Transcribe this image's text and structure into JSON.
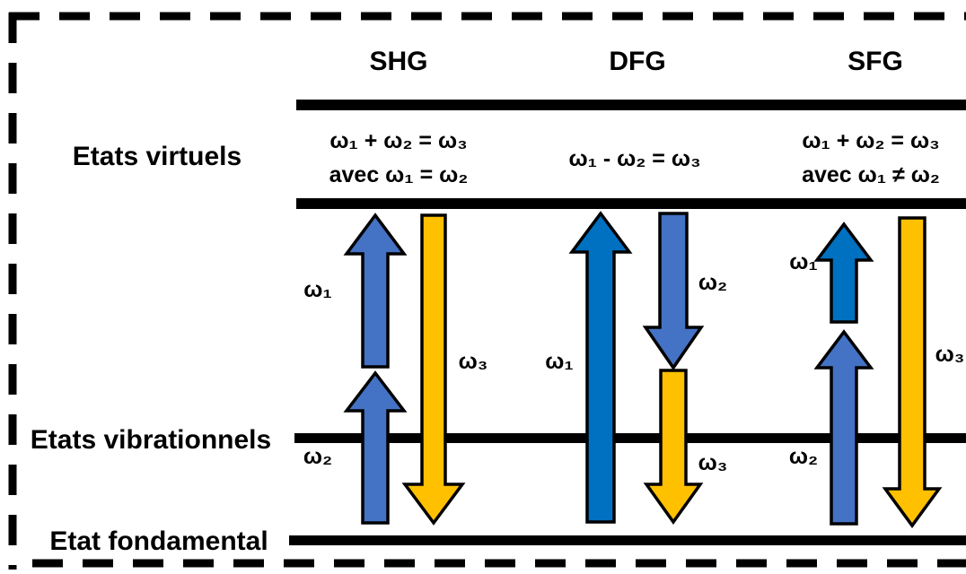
{
  "columns": {
    "shg": {
      "title": "SHG",
      "equation_line1": "ω₁ + ω₂ = ω₃",
      "equation_line2": "avec ω₁ = ω₂",
      "labels": {
        "w1": "ω₁",
        "w2": "ω₂",
        "w3": "ω₃"
      }
    },
    "dfg": {
      "title": "DFG",
      "equation_line1": "ω₁ - ω₂ = ω₃",
      "labels": {
        "w1": "ω₁",
        "w2": "ω₂",
        "w3": "ω₃"
      }
    },
    "sfg": {
      "title": "SFG",
      "equation_line1": "ω₁ + ω₂ = ω₃",
      "equation_line2": "avec ω₁ ≠ ω₂",
      "labels": {
        "w1": "ω₁",
        "w2": "ω₂",
        "w3": "ω₃"
      }
    }
  },
  "levels": {
    "virtual": "Etats virtuels",
    "vibrational": "Etats vibrationnels",
    "ground": "Etat fondamental"
  },
  "colors": {
    "blue_light": "#4472C4",
    "blue_dark": "#0070C0",
    "yellow": "#FFC000",
    "outline": "#000000",
    "level_line": "#000000"
  }
}
